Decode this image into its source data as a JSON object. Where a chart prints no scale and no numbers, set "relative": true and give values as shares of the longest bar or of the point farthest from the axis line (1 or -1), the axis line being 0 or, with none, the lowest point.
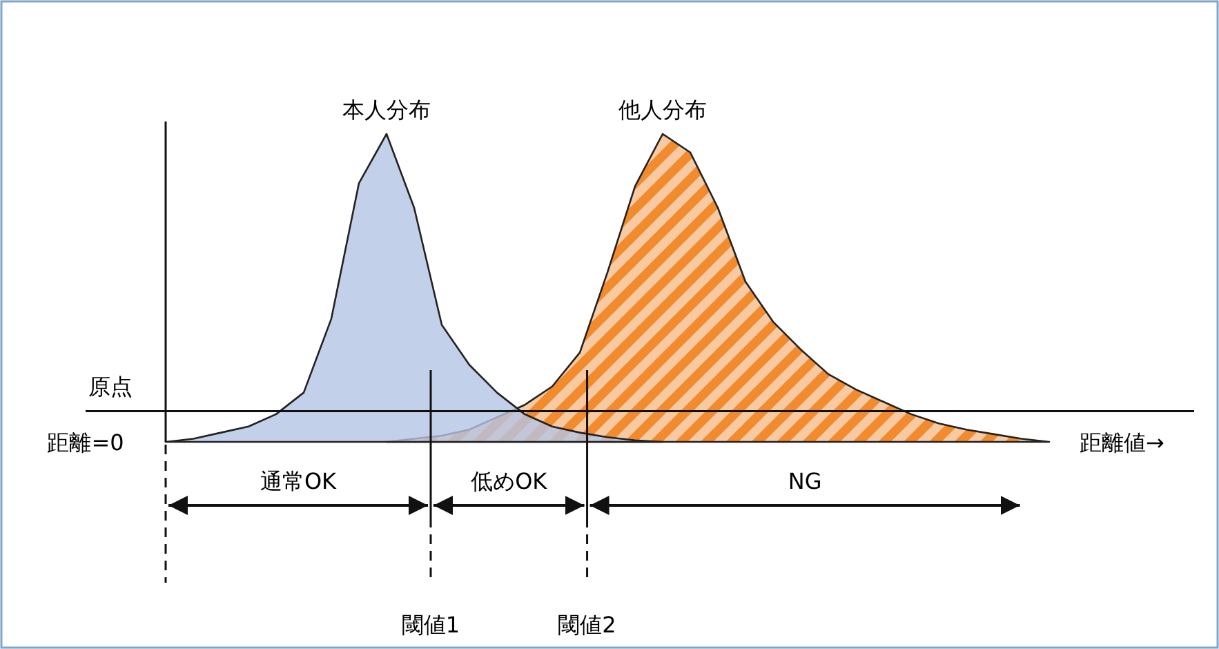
{
  "chart_data": {
    "type": "area",
    "relative": true,
    "xlabel": "距離値→",
    "categories": [
      null,
      null,
      null,
      null,
      null,
      null,
      null,
      null,
      null,
      null,
      null,
      null,
      null,
      null,
      null,
      null,
      null,
      null,
      null,
      null,
      null,
      null,
      null,
      null,
      null,
      null,
      null,
      null,
      null,
      null,
      null,
      null,
      null
    ],
    "series": [
      {
        "name": "本人分布",
        "color": "#b4c4e4",
        "values": [
          0,
          0.01,
          0.03,
          0.05,
          0.09,
          0.16,
          0.4,
          0.84,
          1,
          0.76,
          0.38,
          0.25,
          0.16,
          0.09,
          0.05,
          0.03,
          0.015,
          0.005,
          0,
          null,
          null,
          null,
          null,
          null,
          null,
          null,
          null,
          null,
          null,
          null,
          null,
          null,
          null
        ]
      },
      {
        "name": "他人分布",
        "color": "#f28a2e",
        "values": [
          null,
          null,
          null,
          null,
          null,
          null,
          null,
          null,
          0,
          0.01,
          0.02,
          0.04,
          0.08,
          0.12,
          0.18,
          0.29,
          0.55,
          0.83,
          1,
          0.94,
          0.76,
          0.52,
          0.39,
          0.3,
          0.22,
          0.17,
          0.13,
          0.09,
          0.06,
          0.04,
          0.025,
          0.01,
          0
        ]
      }
    ],
    "ref_lines": [
      {
        "axis": "y",
        "value": 0.1,
        "label": "原点"
      }
    ],
    "annotations": [
      "距離=0",
      "通常OK",
      "低めOK",
      "NG",
      "閾値1",
      "閾値2"
    ]
  }
}
